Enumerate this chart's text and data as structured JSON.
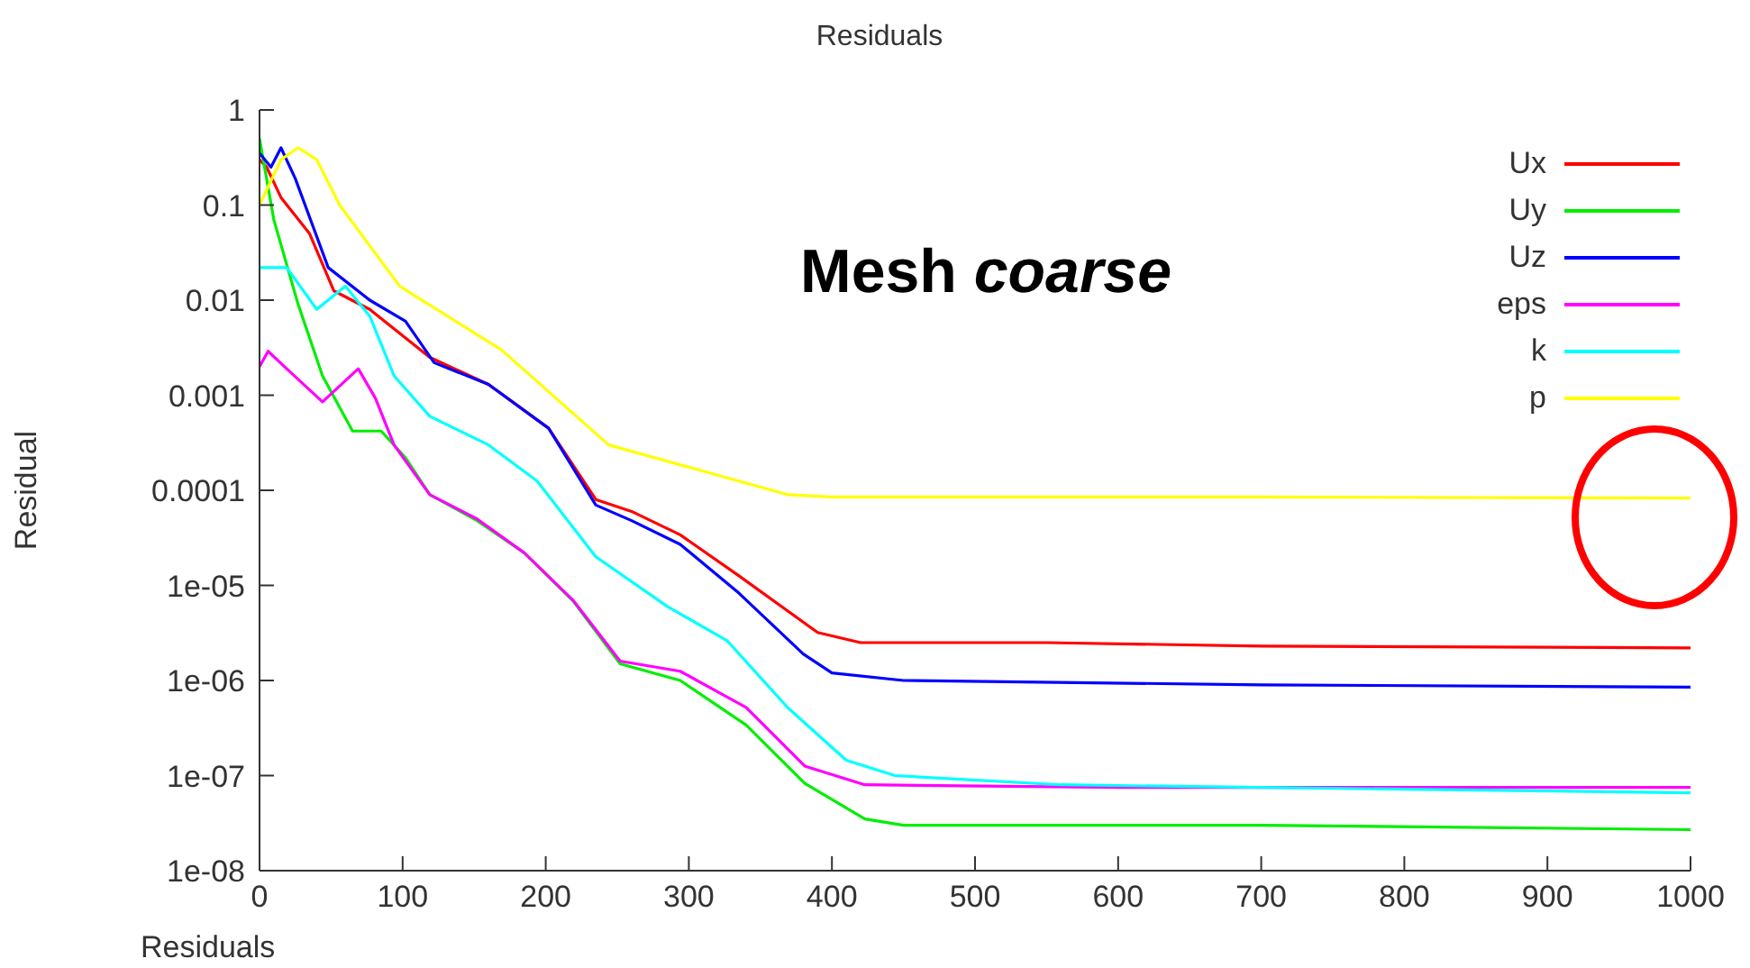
{
  "chart_data": {
    "type": "line",
    "title": "Residuals",
    "xlabel": "Residuals",
    "ylabel": "Residual",
    "log": "y",
    "xlim": [
      0,
      1000
    ],
    "xticks": [
      0,
      100,
      200,
      300,
      400,
      500,
      600,
      700,
      800,
      900,
      1000
    ],
    "ylim": [
      1e-08,
      1
    ],
    "yticks": [
      {
        "value": 1e-08,
        "label": "1e-08"
      },
      {
        "value": 1e-07,
        "label": "1e-07"
      },
      {
        "value": 1e-06,
        "label": "1e-06"
      },
      {
        "value": 1e-05,
        "label": "1e-05"
      },
      0.0001,
      0.001,
      0.01,
      0.1,
      1
    ],
    "grid": false,
    "legend": "top right",
    "marker": "none",
    "line_style": "solid",
    "annotations": [
      "Mesh coarse"
    ],
    "series": [
      {
        "name": "Ux",
        "color": "#ff0000",
        "x": [
          0,
          5,
          15,
          35,
          52,
          77,
          119,
          160,
          202,
          235,
          260,
          294,
          335,
          390,
          420,
          550,
          700,
          1000
        ],
        "values": [
          0.3,
          0.25,
          0.12,
          0.05,
          0.0125,
          0.008,
          0.0025,
          0.0013,
          0.00045,
          8e-05,
          6e-05,
          3.4e-05,
          1.26e-05,
          3.2e-06,
          2.5e-06,
          2.5e-06,
          2.3e-06,
          2.2e-06
        ]
      },
      {
        "name": "Uy",
        "color": "#00ee00",
        "x": [
          0,
          10,
          27,
          44,
          65,
          85,
          102,
          119,
          152,
          185,
          219,
          252,
          294,
          340,
          381,
          423,
          450,
          700,
          1000
        ],
        "values": [
          0.5,
          0.07,
          0.009,
          0.0016,
          0.00042,
          0.00042,
          0.00022,
          9e-05,
          4.8e-05,
          2.2e-05,
          6.9e-06,
          1.5e-06,
          1e-06,
          3.4e-07,
          8.3e-08,
          3.5e-08,
          3e-08,
          3e-08,
          2.7e-08
        ]
      },
      {
        "name": "Uz",
        "color": "#0000ff",
        "x": [
          0,
          8,
          15,
          25,
          48,
          77,
          102,
          122,
          160,
          202,
          235,
          260,
          294,
          335,
          380,
          400,
          450,
          700,
          1000
        ],
        "values": [
          0.35,
          0.25,
          0.4,
          0.19,
          0.022,
          0.01,
          0.006,
          0.0022,
          0.0013,
          0.00045,
          7e-05,
          4.8e-05,
          2.7e-05,
          8.3e-06,
          1.9e-06,
          1.2e-06,
          1e-06,
          9e-07,
          8.5e-07
        ]
      },
      {
        "name": "eps",
        "color": "#ff00ff",
        "x": [
          0,
          6,
          19,
          44,
          69,
          81,
          94,
          119,
          152,
          185,
          219,
          252,
          294,
          340,
          381,
          423,
          600,
          1000
        ],
        "values": [
          0.002,
          0.0029,
          0.0019,
          0.00085,
          0.0019,
          0.00093,
          0.0003,
          9e-05,
          5e-05,
          2.2e-05,
          7e-06,
          1.6e-06,
          1.25e-06,
          5.2e-07,
          1.26e-07,
          8e-08,
          7.5e-08,
          7.5e-08
        ]
      },
      {
        "name": "k",
        "color": "#00ffff",
        "x": [
          0,
          19,
          40,
          60,
          77,
          94,
          119,
          160,
          194,
          235,
          285,
          327,
          369,
          410,
          444,
          560,
          700,
          1000
        ],
        "values": [
          0.022,
          0.022,
          0.008,
          0.014,
          0.0068,
          0.0016,
          0.0006,
          0.0003,
          0.000125,
          2e-05,
          6e-06,
          2.6e-06,
          5.2e-07,
          1.45e-07,
          1e-07,
          8e-08,
          7.5e-08,
          6.6e-08
        ]
      },
      {
        "name": "p",
        "color": "#ffff00",
        "x": [
          0,
          15,
          27,
          40,
          56,
          98,
          169,
          244,
          369,
          400,
          700,
          1000
        ],
        "values": [
          0.1,
          0.3,
          0.4,
          0.3,
          0.1,
          0.014,
          0.003,
          0.0003,
          9e-05,
          8.5e-05,
          8.5e-05,
          8.3e-05
        ]
      }
    ]
  }
}
